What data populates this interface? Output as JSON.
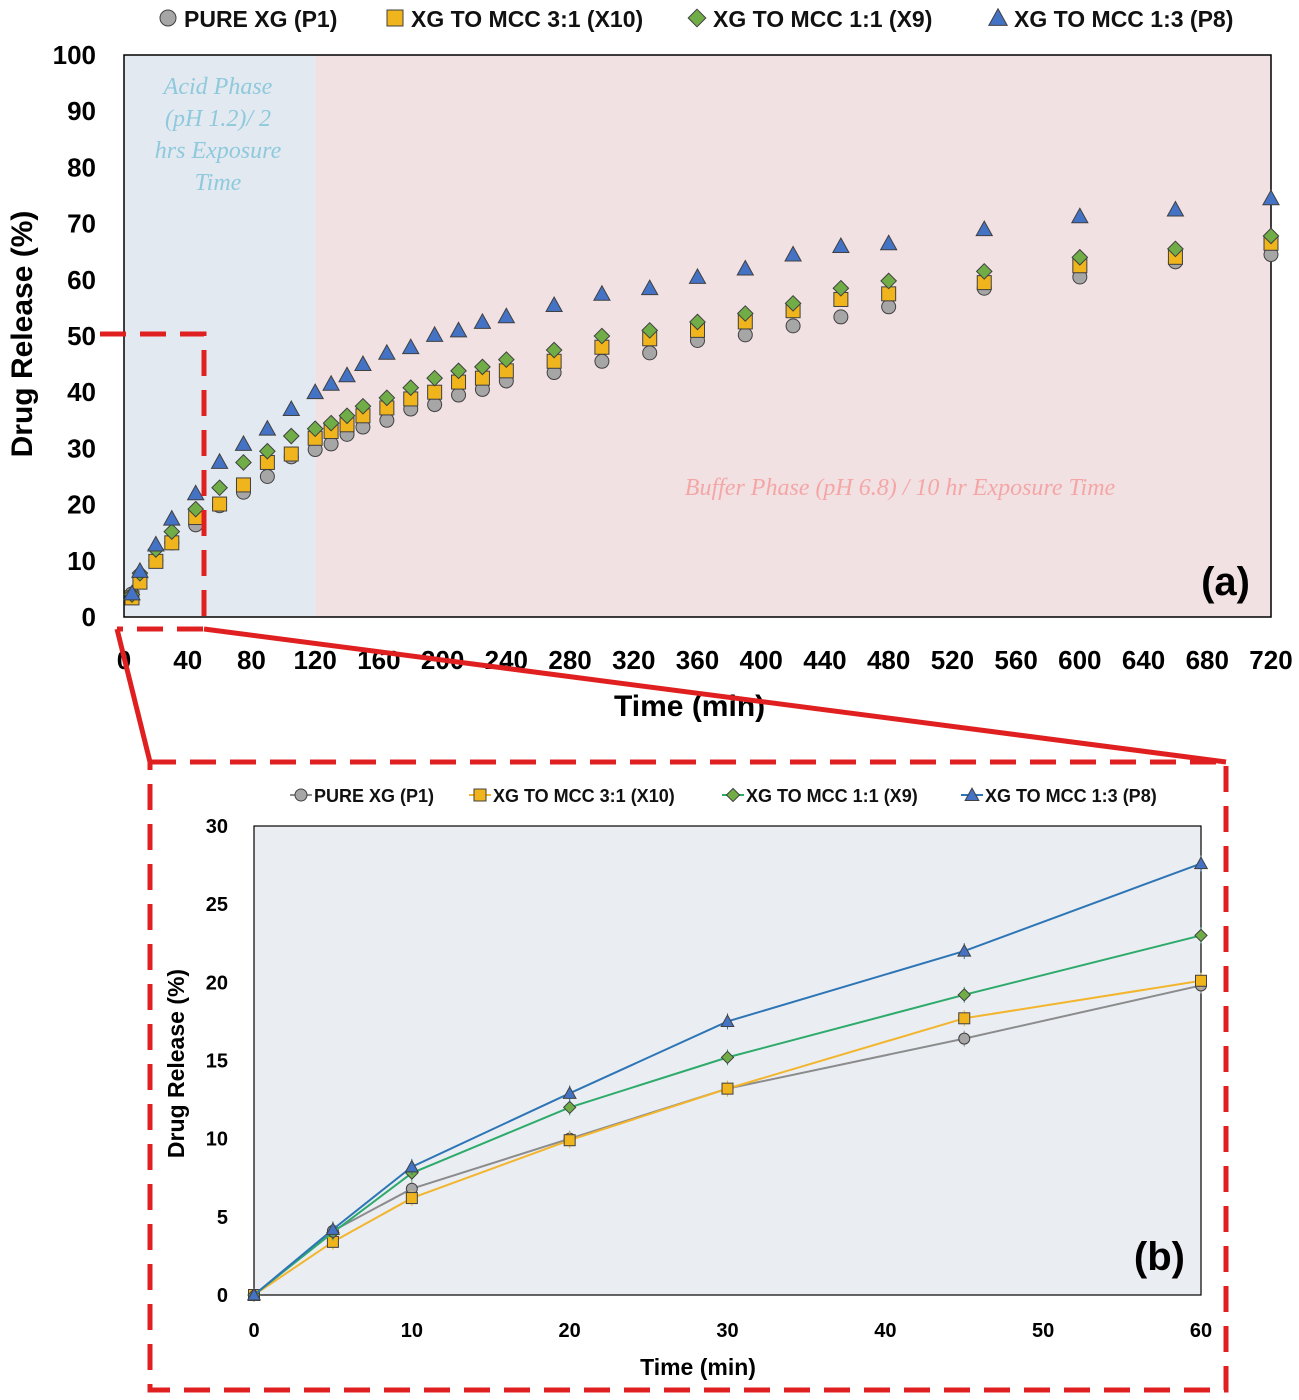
{
  "colors": {
    "pure_xg": "#a6a6a6",
    "xg_mcc_3_1": "#f0b41c",
    "xg_mcc_1_1": "#70ad47",
    "xg_mcc_1_3": "#4472c4",
    "line_pure_xg": "#8c8c8c",
    "line_xg_mcc_3_1": "#f2b52d",
    "line_xg_mcc_1_1": "#2eaa6b",
    "line_xg_mcc_1_3": "#2e75b6",
    "acid_bg": "#e3e9f1",
    "buffer_bg": "#f2e1e3",
    "plot_b_bg": "#eaeef3",
    "zoom": "#e02020"
  },
  "chart_data": [
    {
      "id": "a",
      "type": "scatter",
      "panel_label": "(a)",
      "xlabel": "Time (min)",
      "ylabel": "Drug Release (%)",
      "xlim": [
        0,
        720
      ],
      "ylim": [
        0,
        100
      ],
      "xticks": [
        0,
        40,
        80,
        120,
        160,
        200,
        240,
        280,
        320,
        360,
        400,
        440,
        480,
        520,
        560,
        600,
        640,
        680,
        720
      ],
      "yticks": [
        0,
        10,
        20,
        30,
        40,
        50,
        60,
        70,
        80,
        90,
        100
      ],
      "legend_position": "top",
      "annotations": {
        "acid_phase": [
          "Acid Phase",
          "(pH 1.2)/ 2",
          "hrs Exposure",
          "Time"
        ],
        "buffer_phase": "Buffer Phase (pH 6.8) / 10 hr Exposure Time"
      },
      "regions": [
        {
          "name": "acid",
          "x": [
            0,
            120
          ]
        },
        {
          "name": "buffer",
          "x": [
            120,
            720
          ]
        }
      ],
      "x": [
        5,
        10,
        20,
        30,
        45,
        60,
        75,
        90,
        105,
        120,
        130,
        140,
        150,
        165,
        180,
        195,
        210,
        225,
        240,
        270,
        300,
        330,
        360,
        390,
        420,
        450,
        480,
        540,
        600,
        660,
        720
      ],
      "series": [
        {
          "name": "PURE XG (P1)",
          "marker": "circle",
          "values": [
            4.1,
            6.8,
            10.0,
            13.2,
            16.4,
            19.8,
            22.2,
            25.0,
            28.5,
            29.8,
            30.8,
            32.5,
            33.8,
            35.0,
            37.0,
            37.8,
            39.5,
            40.5,
            42.0,
            43.5,
            45.5,
            47.0,
            49.2,
            50.2,
            51.8,
            53.4,
            55.2,
            58.5,
            60.5,
            63.2,
            64.5
          ]
        },
        {
          "name": "XG TO MCC 3:1 (X10)",
          "marker": "square",
          "values": [
            3.4,
            6.2,
            9.9,
            13.2,
            17.7,
            20.1,
            23.5,
            27.5,
            29.0,
            31.8,
            33.0,
            34.2,
            35.8,
            37.2,
            38.8,
            40.0,
            41.8,
            42.5,
            43.8,
            45.5,
            48.0,
            49.5,
            51.0,
            52.5,
            54.5,
            56.5,
            57.5,
            59.5,
            62.5,
            64.0,
            66.5
          ]
        },
        {
          "name": "XG TO MCC 1:1 (X9)",
          "marker": "diamond",
          "values": [
            4.0,
            7.8,
            12.0,
            15.2,
            19.2,
            23.0,
            27.5,
            29.5,
            32.2,
            33.5,
            34.5,
            35.8,
            37.5,
            39.0,
            40.8,
            42.5,
            43.8,
            44.5,
            45.8,
            47.5,
            50.0,
            51.0,
            52.5,
            54.0,
            55.8,
            58.5,
            59.8,
            61.5,
            64.0,
            65.5,
            67.8
          ]
        },
        {
          "name": "XG TO MCC 1:3 (P8)",
          "marker": "triangle",
          "values": [
            4.2,
            8.2,
            12.9,
            17.5,
            22.0,
            27.6,
            30.8,
            33.5,
            37.0,
            40.0,
            41.5,
            43.0,
            45.0,
            47.0,
            48.0,
            50.2,
            51.0,
            52.5,
            53.5,
            55.5,
            57.5,
            58.5,
            60.5,
            62.0,
            64.5,
            66.0,
            66.5,
            69.0,
            71.3,
            72.5,
            74.5
          ]
        }
      ],
      "zoom_region": {
        "x": [
          0,
          60
        ],
        "y": [
          0,
          50
        ]
      }
    },
    {
      "id": "b",
      "type": "line",
      "panel_label": "(b)",
      "xlabel": "Time (min)",
      "ylabel": "Drug Release (%)",
      "xlim": [
        0,
        60
      ],
      "ylim": [
        0,
        30
      ],
      "xticks": [
        0,
        10,
        20,
        30,
        40,
        50,
        60
      ],
      "yticks": [
        0,
        5,
        10,
        15,
        20,
        25,
        30
      ],
      "legend_position": "top",
      "x": [
        0,
        5,
        10,
        20,
        30,
        45,
        60
      ],
      "series": [
        {
          "name": "PURE XG (P1)",
          "marker": "circle",
          "values": [
            0,
            4.1,
            6.8,
            10.0,
            13.2,
            16.4,
            19.8
          ]
        },
        {
          "name": "XG TO MCC 3:1 (X10)",
          "marker": "square",
          "values": [
            0,
            3.4,
            6.2,
            9.9,
            13.2,
            17.7,
            20.1
          ]
        },
        {
          "name": "XG TO MCC 1:1 (X9)",
          "marker": "diamond",
          "values": [
            0,
            4.0,
            7.8,
            12.0,
            15.2,
            19.2,
            23.0
          ]
        },
        {
          "name": "XG TO MCC 1:3 (P8)",
          "marker": "triangle",
          "values": [
            0,
            4.2,
            8.2,
            12.9,
            17.5,
            22.0,
            27.6
          ]
        }
      ]
    }
  ]
}
